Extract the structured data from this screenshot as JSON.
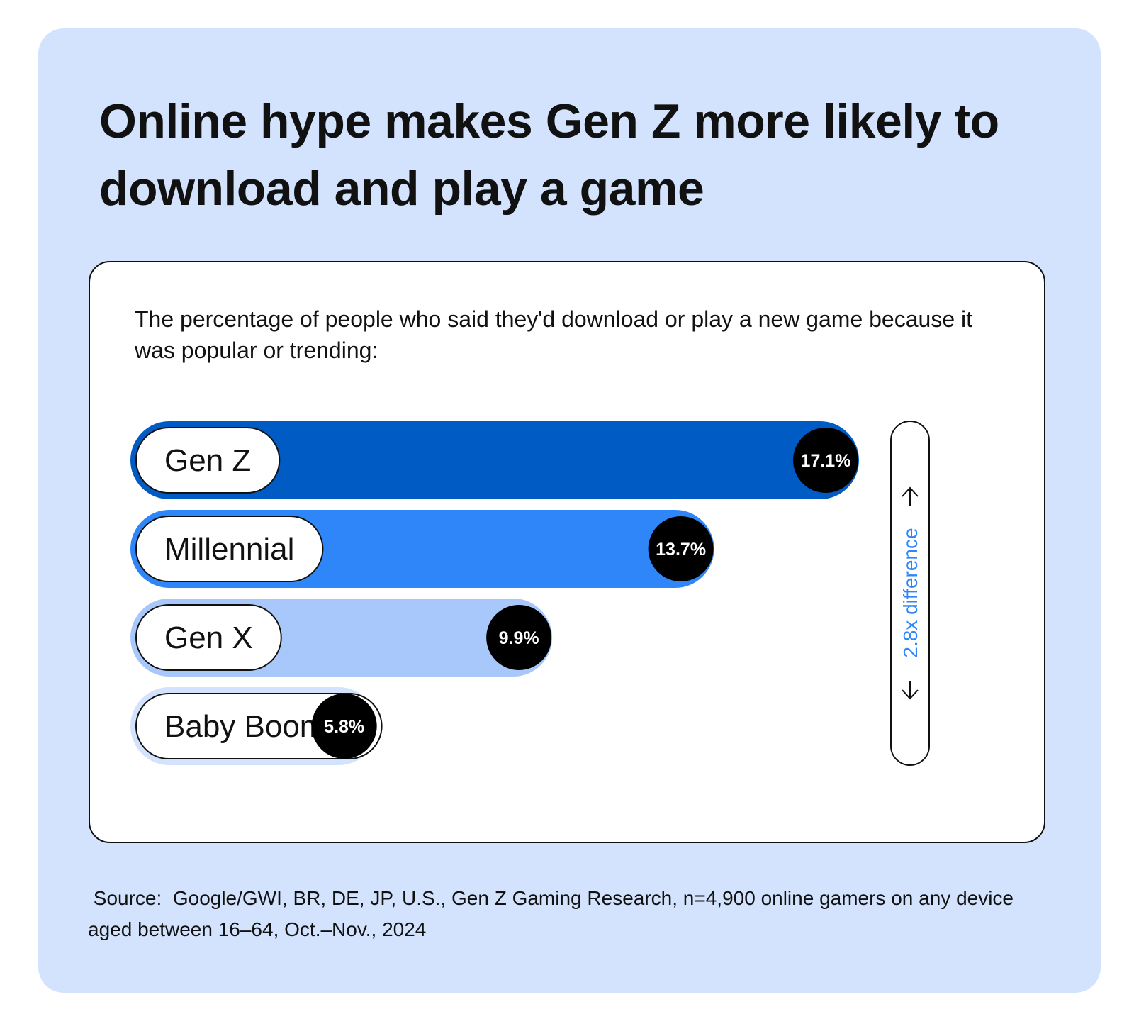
{
  "title": "Online hype makes Gen Z more likely to download and play a game",
  "subtitle": "The percentage of people who said they'd download or play a new game because it was popular or trending:",
  "source": " Source:  Google/GWI, BR, DE, JP, U.S., Gen Z Gaming Research, n=4,900 online gamers on any device aged between 16–64, Oct.–Nov., 2024",
  "chart_data": {
    "type": "bar",
    "orientation": "horizontal",
    "categories": [
      "Gen Z",
      "Millennial",
      "Gen X",
      "Baby Boomer"
    ],
    "values": [
      17.1,
      13.7,
      9.9,
      5.8
    ],
    "value_labels": [
      "17.1%",
      "13.7%",
      "9.9%",
      "5.8%"
    ],
    "colors": [
      "#005bc4",
      "#2e86f9",
      "#a8c8fb",
      "#d3e3fd"
    ],
    "label_badge_color": "#000000",
    "annotation": {
      "text": "2.8x difference",
      "color": "#2e86f9",
      "icons": [
        "arrow-up-icon",
        "arrow-down-icon"
      ]
    }
  }
}
